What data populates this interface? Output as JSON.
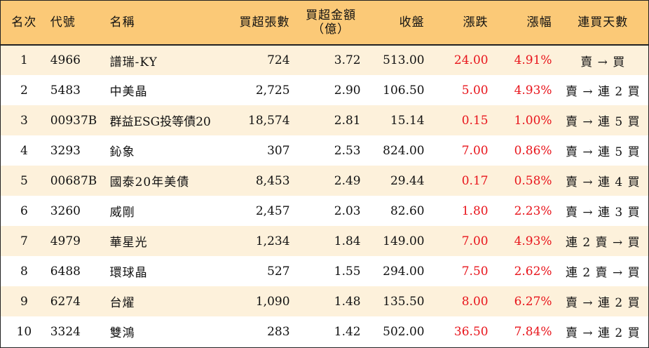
{
  "headers": {
    "rank": "名次",
    "code": "代號",
    "name": "名稱",
    "net_buy_lots": "買超張數",
    "net_buy_amount_line1": "買超金額",
    "net_buy_amount_line2": "（億）",
    "close": "收盤",
    "change": "漲跌",
    "change_pct": "漲幅",
    "consecutive_days": "連買天數"
  },
  "colors": {
    "header_bg": "#fbc977",
    "odd_row_bg": "#fdf1db",
    "up_color": "#e8141b"
  },
  "rows": [
    {
      "rank": "1",
      "code": "4966",
      "name": "譜瑞-KY",
      "lots": "724",
      "amount": "3.72",
      "close": "513.00",
      "change": "24.00",
      "pct": "4.91%",
      "days": "賣 → 買"
    },
    {
      "rank": "2",
      "code": "5483",
      "name": "中美晶",
      "lots": "2,725",
      "amount": "2.90",
      "close": "106.50",
      "change": "5.00",
      "pct": "4.93%",
      "days": "賣 → 連 2 買"
    },
    {
      "rank": "3",
      "code": "00937B",
      "name": "群益ESG投等債20",
      "lots": "18,574",
      "amount": "2.81",
      "close": "15.14",
      "change": "0.15",
      "pct": "1.00%",
      "days": "賣 → 連 5 買"
    },
    {
      "rank": "4",
      "code": "3293",
      "name": "鈊象",
      "lots": "307",
      "amount": "2.53",
      "close": "824.00",
      "change": "7.00",
      "pct": "0.86%",
      "days": "賣 → 連 5 買"
    },
    {
      "rank": "5",
      "code": "00687B",
      "name": "國泰20年美債",
      "lots": "8,453",
      "amount": "2.49",
      "close": "29.44",
      "change": "0.17",
      "pct": "0.58%",
      "days": "賣 → 連 4 買"
    },
    {
      "rank": "6",
      "code": "3260",
      "name": "威剛",
      "lots": "2,457",
      "amount": "2.03",
      "close": "82.60",
      "change": "1.80",
      "pct": "2.23%",
      "days": "賣 → 連 3 買"
    },
    {
      "rank": "7",
      "code": "4979",
      "name": "華星光",
      "lots": "1,234",
      "amount": "1.84",
      "close": "149.00",
      "change": "7.00",
      "pct": "4.93%",
      "days": "連 2 賣 → 買"
    },
    {
      "rank": "8",
      "code": "6488",
      "name": "環球晶",
      "lots": "527",
      "amount": "1.55",
      "close": "294.00",
      "change": "7.50",
      "pct": "2.62%",
      "days": "連 2 賣 → 買"
    },
    {
      "rank": "9",
      "code": "6274",
      "name": "台燿",
      "lots": "1,090",
      "amount": "1.48",
      "close": "135.50",
      "change": "8.00",
      "pct": "6.27%",
      "days": "賣 → 連 2 買"
    },
    {
      "rank": "10",
      "code": "3324",
      "name": "雙鴻",
      "lots": "283",
      "amount": "1.42",
      "close": "502.00",
      "change": "36.50",
      "pct": "7.84%",
      "days": "賣 → 連 2 買"
    }
  ]
}
